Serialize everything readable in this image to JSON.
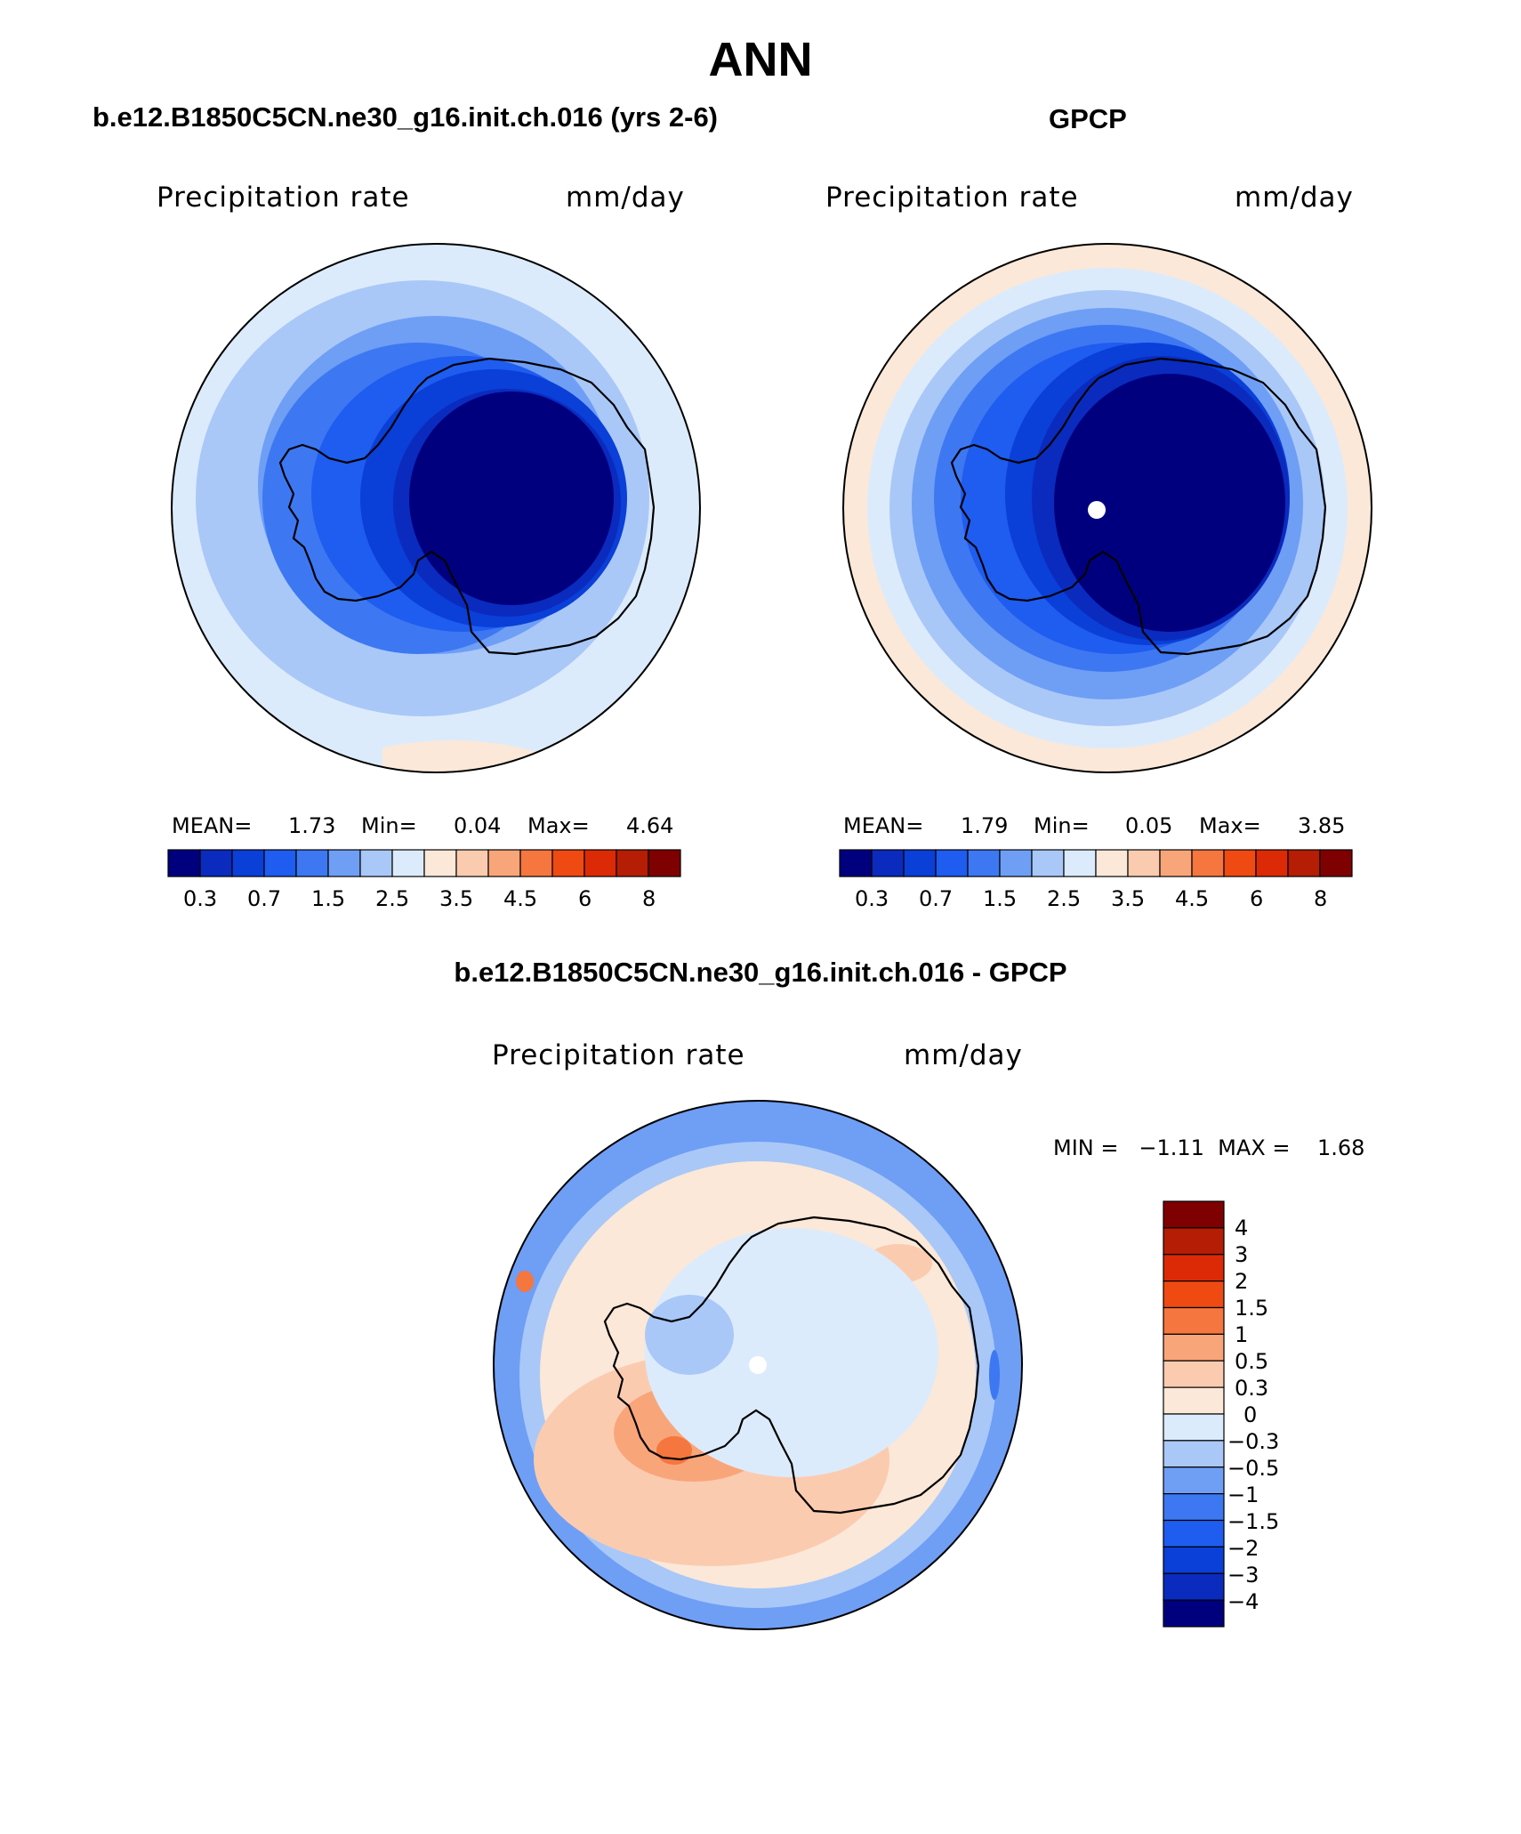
{
  "main_title": "ANN",
  "colors": {
    "abs_scale": [
      "#00007f",
      "#0a2bbe",
      "#0a3fd8",
      "#1f5cf0",
      "#3d78f2",
      "#6f9ef5",
      "#a9c8f8",
      "#dcebfb",
      "#fbe8d8",
      "#fbcbb0",
      "#f9a57a",
      "#f5763e",
      "#ee4a12",
      "#dc2a06",
      "#b51d04",
      "#7f0000"
    ],
    "diff_scale": [
      "#00007f",
      "#0a2bbe",
      "#0a3fd8",
      "#1f5cf0",
      "#3d78f2",
      "#6f9ef5",
      "#a9c8f8",
      "#dcebfb",
      "#fbe8d8",
      "#fbcbb0",
      "#f9a57a",
      "#f5763e",
      "#ee4a12",
      "#dc2a06",
      "#b51d04",
      "#7f0000"
    ]
  },
  "panels": [
    {
      "case_title": "b.e12.B1850C5CN.ne30_g16.init.ch.016 (yrs 2-6)",
      "variable": "Precipitation rate",
      "units": "mm/day",
      "mean_label": "MEAN=",
      "mean_value": "1.73",
      "min_label": "Min=",
      "min_value": "0.04",
      "max_label": "Max=",
      "max_value": "4.64",
      "colorbar_labels": [
        "0.3",
        "0.7",
        "1.5",
        "2.5",
        "3.5",
        "4.5",
        "6",
        "8"
      ]
    },
    {
      "case_title": "GPCP",
      "variable": "Precipitation rate",
      "units": "mm/day",
      "mean_label": "MEAN=",
      "mean_value": "1.79",
      "min_label": "Min=",
      "min_value": "0.05",
      "max_label": "Max=",
      "max_value": "3.85",
      "colorbar_labels": [
        "0.3",
        "0.7",
        "1.5",
        "2.5",
        "3.5",
        "4.5",
        "6",
        "8"
      ]
    }
  ],
  "diff_panel": {
    "case_title": "b.e12.B1850C5CN.ne30_g16.init.ch.016 - GPCP",
    "variable": "Precipitation rate",
    "units": "mm/day",
    "minmax_text": "MIN =   −1.11  MAX =    1.68",
    "colorbar_labels": [
      "4",
      "3",
      "2",
      "1.5",
      "1",
      "0.5",
      "0.3",
      "0",
      "−0.3",
      "−0.5",
      "−1",
      "−1.5",
      "−2",
      "−3",
      "−4"
    ]
  }
}
